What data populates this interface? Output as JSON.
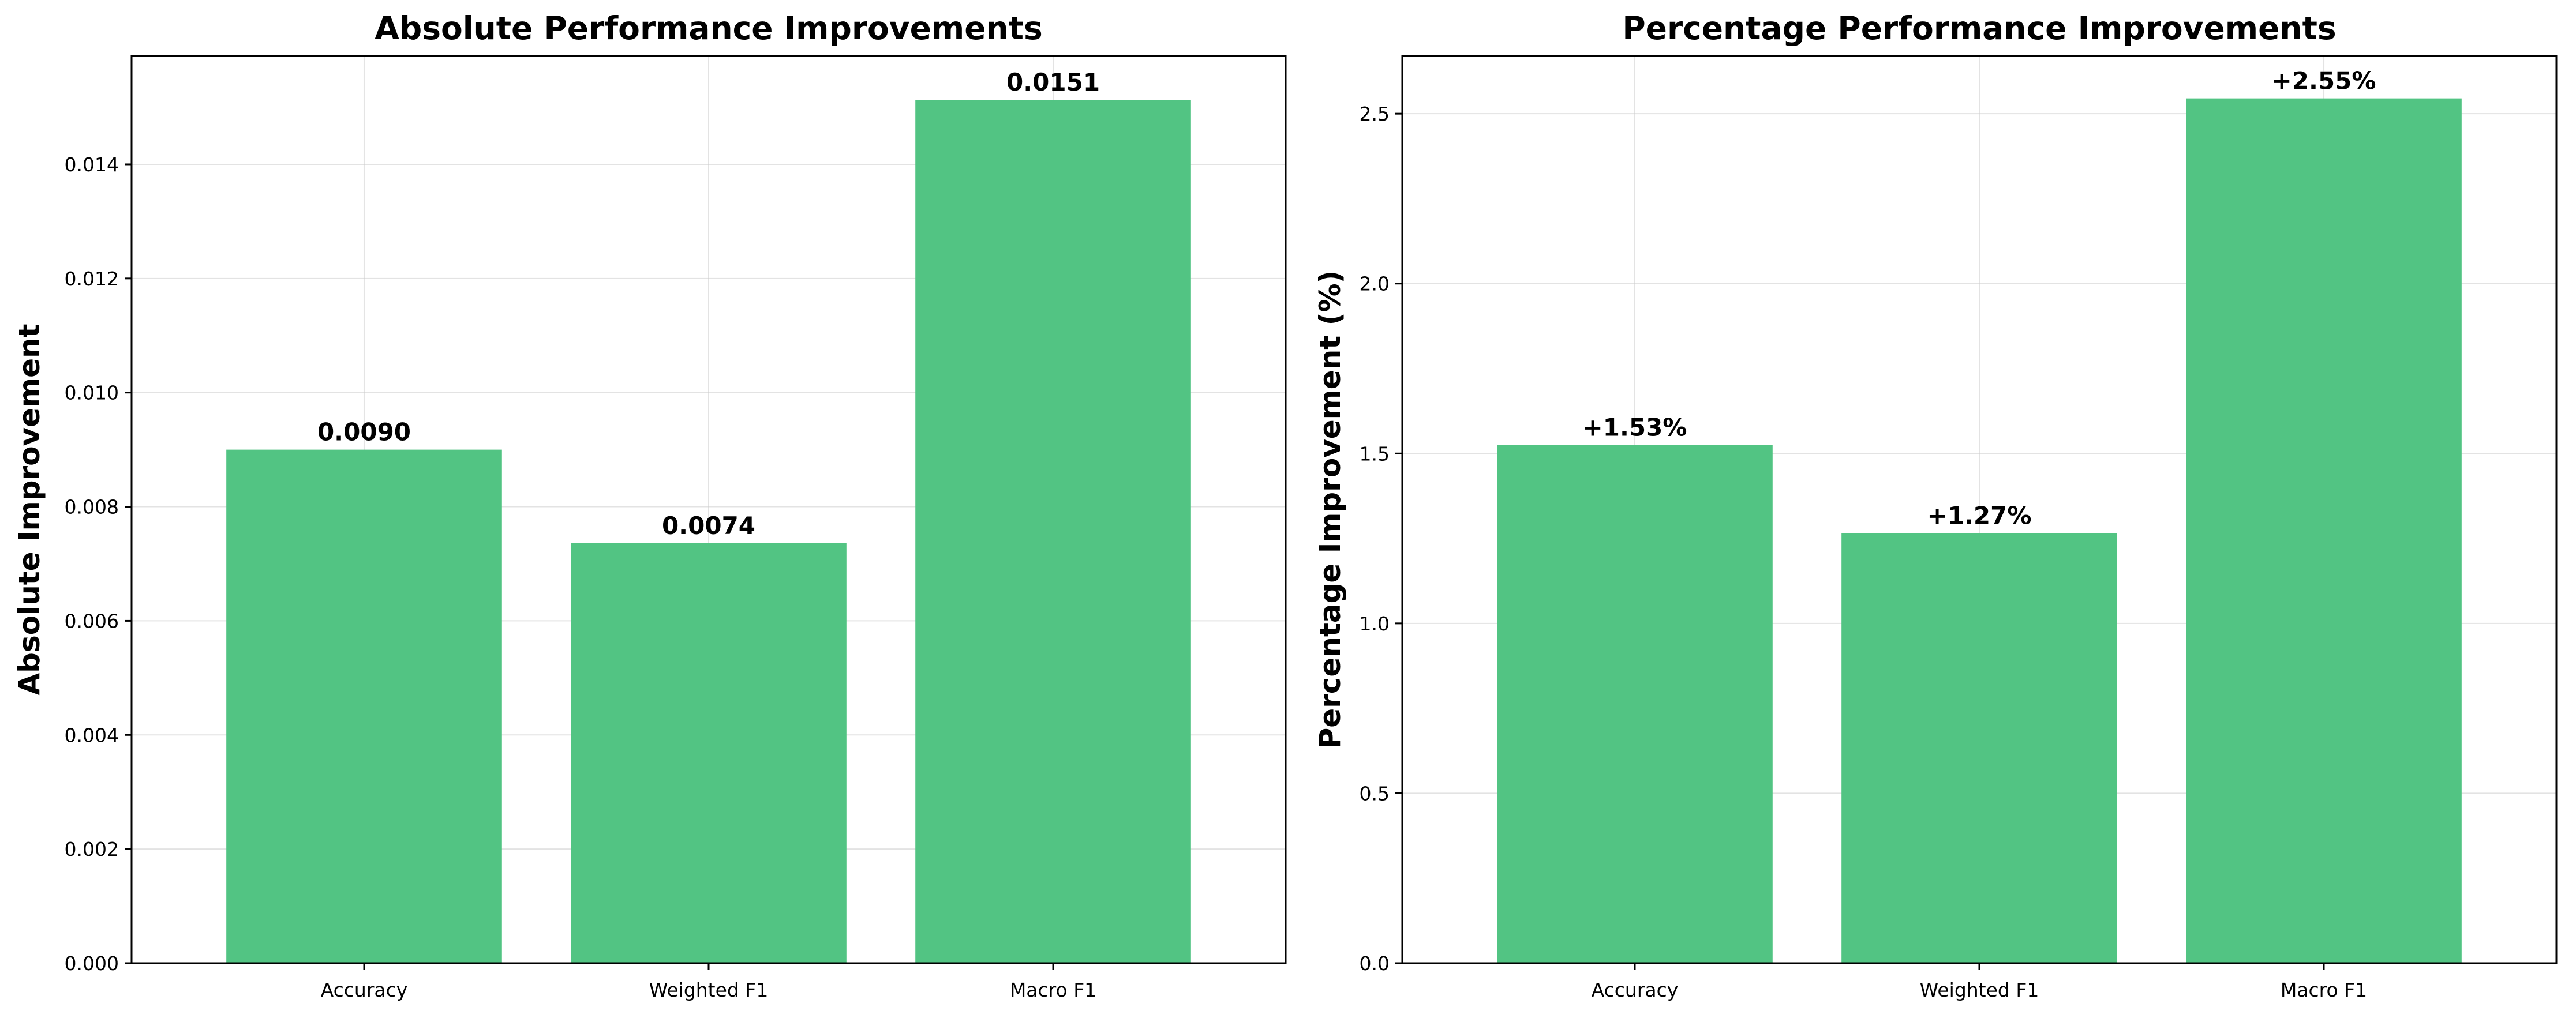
{
  "chart_data": [
    {
      "type": "bar",
      "title": "Absolute Performance Improvements",
      "xlabel": "",
      "ylabel": "Absolute Improvement",
      "categories": [
        "Accuracy",
        "Weighted F1",
        "Macro F1"
      ],
      "values": [
        0.009,
        0.00736,
        0.01513
      ],
      "data_labels": [
        "0.0090",
        "0.0074",
        "0.0151"
      ],
      "ylim": [
        0,
        0.0159
      ],
      "yticks": [
        0,
        0.002,
        0.004,
        0.006,
        0.008,
        0.01,
        0.012,
        0.014
      ],
      "ytick_labels": [
        "0.000",
        "0.002",
        "0.004",
        "0.006",
        "0.008",
        "0.010",
        "0.012",
        "0.014"
      ],
      "grid": true,
      "bar_color": "#52c483"
    },
    {
      "type": "bar",
      "title": "Percentage Performance Improvements",
      "xlabel": "",
      "ylabel": "Percentage Improvement (%)",
      "categories": [
        "Accuracy",
        "Weighted F1",
        "Macro F1"
      ],
      "values": [
        1.525,
        1.265,
        2.545
      ],
      "data_labels": [
        "+1.53%",
        "+1.27%",
        "+2.55%"
      ],
      "ylim": [
        0,
        2.67
      ],
      "yticks": [
        0,
        0.5,
        1.0,
        1.5,
        2.0,
        2.5
      ],
      "ytick_labels": [
        "0.0",
        "0.5",
        "1.0",
        "1.5",
        "2.0",
        "2.5"
      ],
      "grid": true,
      "bar_color": "#52c483"
    }
  ]
}
